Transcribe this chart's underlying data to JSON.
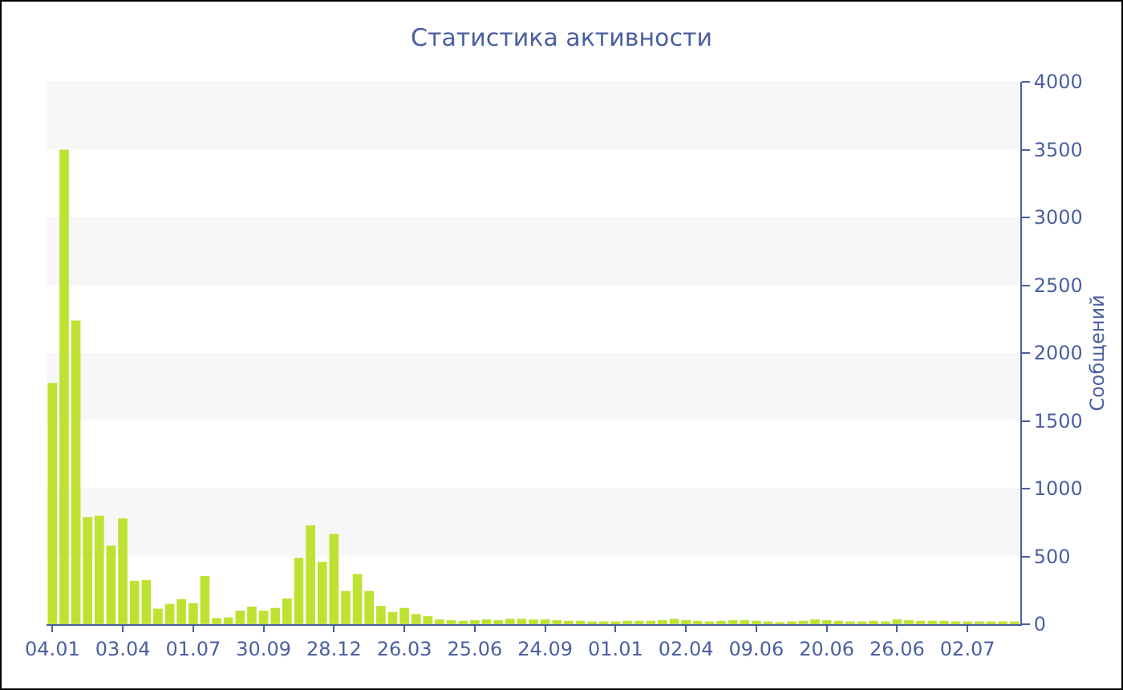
{
  "chart_data": {
    "type": "bar",
    "title": "Статистика активности",
    "ylabel": "Сообщений",
    "categories": [
      "04.01",
      null,
      null,
      null,
      null,
      null,
      "03.04",
      null,
      null,
      null,
      null,
      null,
      "01.07",
      null,
      null,
      null,
      null,
      null,
      "30.09",
      null,
      null,
      null,
      null,
      null,
      "28.12",
      null,
      null,
      null,
      null,
      null,
      "26.03",
      null,
      null,
      null,
      null,
      null,
      "25.06",
      null,
      null,
      null,
      null,
      null,
      "24.09",
      null,
      null,
      null,
      null,
      null,
      "01.01",
      null,
      null,
      null,
      null,
      null,
      "02.04",
      null,
      null,
      null,
      null,
      null,
      "09.06",
      null,
      null,
      null,
      null,
      null,
      "20.06",
      null,
      null,
      null,
      null,
      null,
      "26.06",
      null,
      null,
      null,
      null,
      null,
      "02.07",
      null,
      null,
      null,
      null
    ],
    "series": [
      {
        "color": "#bde232",
        "values": [
          1780,
          3500,
          2240,
          790,
          800,
          580,
          780,
          320,
          325,
          115,
          150,
          185,
          155,
          355,
          45,
          50,
          100,
          130,
          100,
          120,
          190,
          490,
          730,
          460,
          665,
          245,
          370,
          245,
          135,
          90,
          120,
          75,
          60,
          35,
          30,
          25,
          30,
          35,
          30,
          40,
          40,
          35,
          35,
          30,
          25,
          25,
          20,
          20,
          20,
          25,
          25,
          25,
          30,
          40,
          30,
          25,
          20,
          25,
          30,
          30,
          25,
          20,
          15,
          20,
          25,
          35,
          30,
          25,
          20,
          20,
          25,
          20,
          35,
          30,
          25,
          25,
          25,
          20,
          20,
          20,
          20,
          20,
          20
        ]
      }
    ],
    "ylim": [
      0,
      4000
    ],
    "yticks": [
      0,
      500,
      1000,
      1500,
      2000,
      2500,
      3000,
      3500,
      4000
    ],
    "bands": [
      {
        "axis": "y",
        "from": 500,
        "to": 1000,
        "color": "#f7f7f7"
      },
      {
        "axis": "y",
        "from": 1500,
        "to": 2000,
        "color": "#f7f7f7"
      },
      {
        "axis": "y",
        "from": 2500,
        "to": 3000,
        "color": "#f7f7f7"
      },
      {
        "axis": "y",
        "from": 3500,
        "to": 4000,
        "color": "#f7f7f7"
      }
    ]
  }
}
